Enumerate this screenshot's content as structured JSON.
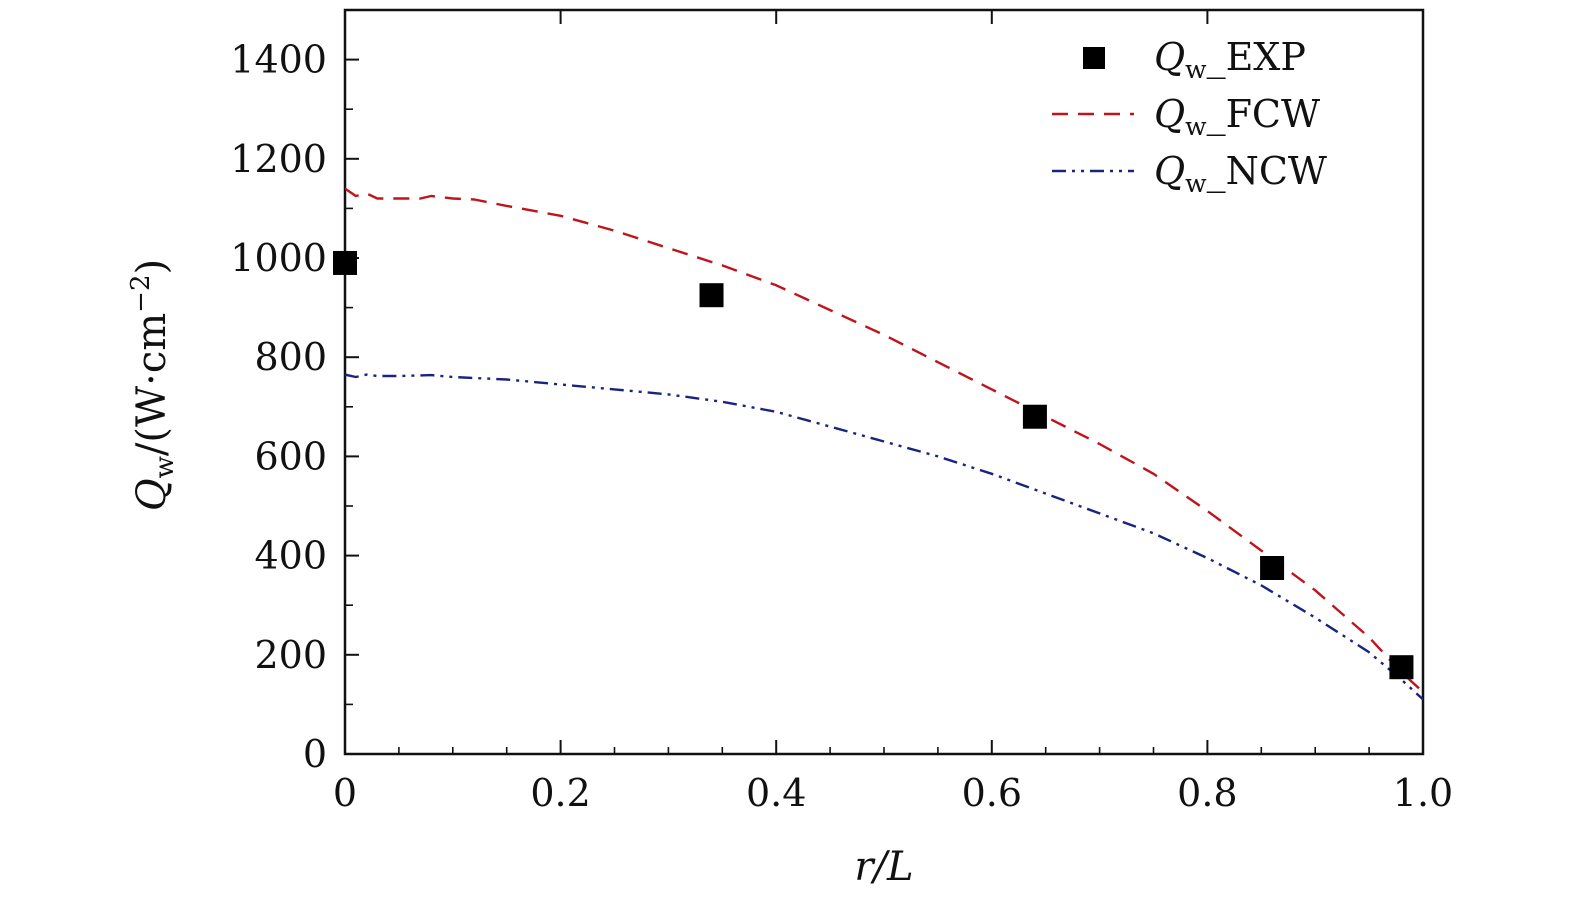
{
  "chart_data": {
    "type": "line",
    "xlabel": "r/L",
    "ylabel": "Q_w/(W·cm^-2)",
    "ylabel_parts": {
      "symbol": "Q",
      "sub": "w",
      "unit": "/(W·cm",
      "exp": "−2",
      "close": ")"
    },
    "xlim": [
      0,
      1.0
    ],
    "ylim": [
      0,
      1500
    ],
    "xticks": [
      0,
      0.2,
      0.4,
      0.6,
      0.8,
      1.0
    ],
    "xtick_labels": [
      "0",
      "0.2",
      "0.4",
      "0.6",
      "0.8",
      "1.0"
    ],
    "yticks": [
      0,
      200,
      400,
      600,
      800,
      1000,
      1200,
      1400
    ],
    "ytick_labels": [
      "0",
      "200",
      "400",
      "600",
      "800",
      "1000",
      "1200",
      "1400"
    ],
    "grid": false,
    "legend_position": "top-right",
    "series": [
      {
        "name": "Q_w_EXP",
        "label_parts": {
          "symbol": "Q",
          "sub": "w",
          "rest": "_EXP"
        },
        "style": "markers",
        "color": "#000000",
        "x": [
          0.0,
          0.34,
          0.64,
          0.86,
          0.98
        ],
        "y": [
          990,
          925,
          680,
          375,
          175
        ]
      },
      {
        "name": "Q_w_FCW",
        "label_parts": {
          "symbol": "Q",
          "sub": "w",
          "rest": "_FCW"
        },
        "style": "dashed",
        "color": "#c0141c",
        "x": [
          0.0,
          0.01,
          0.02,
          0.03,
          0.05,
          0.07,
          0.08,
          0.1,
          0.12,
          0.15,
          0.2,
          0.25,
          0.3,
          0.35,
          0.4,
          0.45,
          0.5,
          0.55,
          0.6,
          0.65,
          0.7,
          0.75,
          0.8,
          0.85,
          0.9,
          0.95,
          0.98,
          1.0
        ],
        "y": [
          1140,
          1125,
          1130,
          1120,
          1120,
          1120,
          1125,
          1120,
          1118,
          1105,
          1085,
          1055,
          1020,
          985,
          945,
          895,
          845,
          790,
          735,
          680,
          625,
          565,
          490,
          410,
          330,
          235,
          165,
          125
        ]
      },
      {
        "name": "Q_w_NCW",
        "label_parts": {
          "symbol": "Q",
          "sub": "w",
          "rest": "_NCW"
        },
        "style": "dash-dot-dot",
        "color": "#1a237e",
        "x": [
          0.0,
          0.01,
          0.02,
          0.03,
          0.05,
          0.08,
          0.1,
          0.15,
          0.2,
          0.25,
          0.3,
          0.35,
          0.4,
          0.45,
          0.5,
          0.55,
          0.6,
          0.65,
          0.7,
          0.75,
          0.8,
          0.85,
          0.9,
          0.95,
          0.98,
          1.0
        ],
        "y": [
          765,
          760,
          765,
          762,
          762,
          764,
          760,
          755,
          745,
          735,
          725,
          710,
          690,
          660,
          630,
          600,
          565,
          525,
          485,
          445,
          395,
          340,
          275,
          205,
          150,
          110
        ]
      }
    ]
  }
}
